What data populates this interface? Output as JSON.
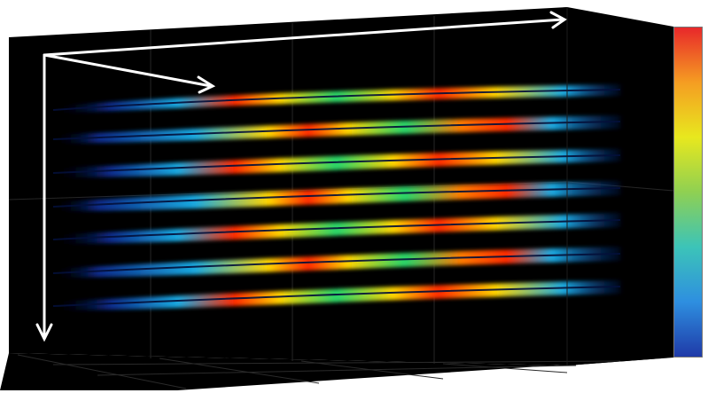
{
  "scene": {
    "background": "#000000",
    "frame_color": "#1a1a1a",
    "grid_color": "#2c2c2c",
    "axis_arrow_color": "#ffffff"
  },
  "slices": {
    "count": 7,
    "band_center_color": "#0a1f6e",
    "hot_color": "#ff2a00",
    "warm_color": "#ffd400",
    "mid_color": "#25d46a",
    "cool_color": "#1aa9e0"
  },
  "colorbar": {
    "stops": [
      "#e8282a",
      "#f59d22",
      "#e8e81e",
      "#8fd052",
      "#3cc4b8",
      "#2e8fe0",
      "#1f3aa8"
    ]
  }
}
